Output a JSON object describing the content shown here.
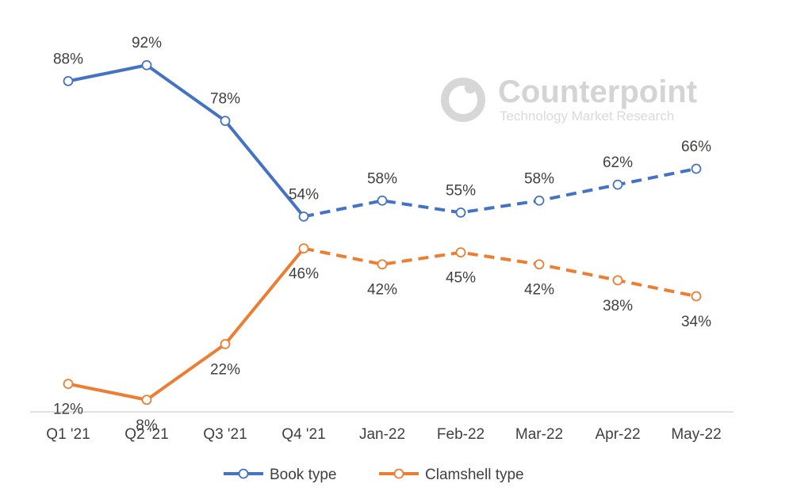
{
  "watermark": {
    "title": "Counterpoint",
    "subtitle": "Technology Market Research"
  },
  "colors": {
    "book": "#4472c4",
    "clamshell": "#ed7d31",
    "axis": "#d9d9d9",
    "text": "#404040"
  },
  "chart_data": {
    "type": "line",
    "categories": [
      "Q1 '21",
      "Q2 '21",
      "Q3 '21",
      "Q4 '21",
      "Jan-22",
      "Feb-22",
      "Mar-22",
      "Apr-22",
      "May-22"
    ],
    "ylim": [
      0,
      100
    ],
    "grid": false,
    "legend_position": "bottom",
    "dashed_from_index": 3,
    "series": [
      {
        "name": "Book type",
        "values": [
          88,
          92,
          78,
          54,
          58,
          55,
          58,
          62,
          66
        ],
        "labels": [
          "88%",
          "92%",
          "78%",
          "54%",
          "58%",
          "55%",
          "58%",
          "62%",
          "66%"
        ],
        "color": "#4472c4",
        "marker": "hollow-circle"
      },
      {
        "name": "Clamshell type",
        "values": [
          12,
          8,
          22,
          46,
          42,
          45,
          42,
          38,
          34
        ],
        "labels": [
          "12%",
          "8%",
          "22%",
          "46%",
          "42%",
          "45%",
          "42%",
          "38%",
          "34%"
        ],
        "color": "#ed7d31",
        "marker": "hollow-circle"
      }
    ]
  }
}
